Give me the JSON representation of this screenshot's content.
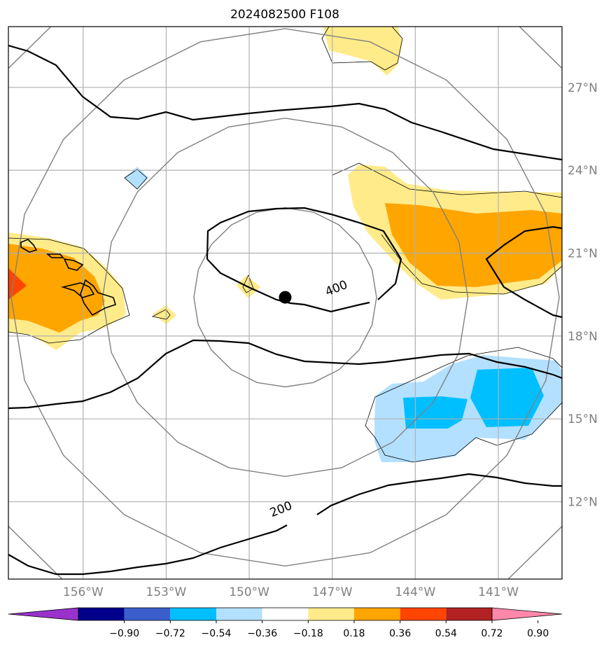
{
  "title": "2024082500 F108",
  "map": {
    "lon_range": [
      -158.7,
      -138.7
    ],
    "lat_range": [
      9.2,
      29.2
    ],
    "lon_ticks": [
      {
        "value": -156,
        "label": "156°W"
      },
      {
        "value": -153,
        "label": "153°W"
      },
      {
        "value": -150,
        "label": "150°W"
      },
      {
        "value": -147,
        "label": "147°W"
      },
      {
        "value": -144,
        "label": "144°W"
      },
      {
        "value": -141,
        "label": "141°W"
      }
    ],
    "lat_ticks": [
      {
        "value": 12,
        "label": "12°N"
      },
      {
        "value": 15,
        "label": "15°N"
      },
      {
        "value": 18,
        "label": "18°N"
      },
      {
        "value": 21,
        "label": "21°N"
      },
      {
        "value": 24,
        "label": "24°N"
      },
      {
        "value": 27,
        "label": "27°N"
      }
    ],
    "gridlines": true,
    "storm_center": {
      "lon": -148.7,
      "lat": 19.4
    },
    "range_rings_deg": [
      3,
      6,
      9,
      12
    ],
    "contour_labels": [
      {
        "text": "400",
        "lon": -146.8,
        "lat": 19.6
      },
      {
        "text": "200",
        "lon": -148.8,
        "lat": 11.6
      }
    ],
    "colors": {
      "contour": "#000000",
      "ring": "#808080",
      "grid": "#b0b0b0",
      "light_blue": "#b3e0ff",
      "blue": "#00bfff",
      "yellow": "#ffeb8a",
      "orange": "#ffa500",
      "red_orange": "#ff4500"
    }
  },
  "colorbar": {
    "levels": [
      "−0.90",
      "−0.72",
      "−0.54",
      "−0.36",
      "−0.18",
      "0.18",
      "0.36",
      "0.54",
      "0.72",
      "0.90"
    ],
    "colors": [
      "#9932cc",
      "#00008b",
      "#3a5fcd",
      "#00bfff",
      "#b3e0ff",
      "#ffffff",
      "#ffeb8a",
      "#ffa500",
      "#ff4500",
      "#b22222",
      "#ff88aa"
    ]
  }
}
